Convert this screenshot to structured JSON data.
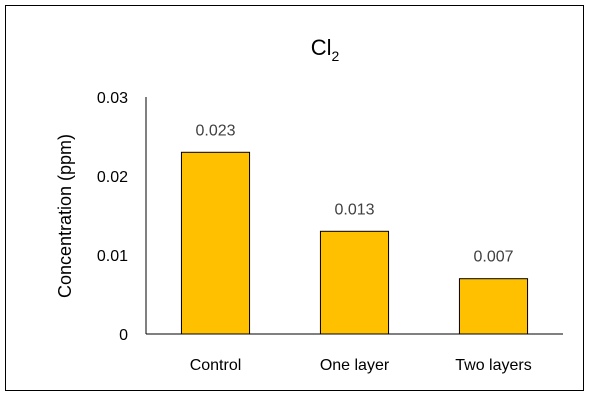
{
  "chart_data": {
    "type": "bar",
    "title": {
      "main": "Cl",
      "subscript": "2"
    },
    "xlabel": "",
    "ylabel": "Concentration (ppm)",
    "categories": [
      "Control",
      "One layer",
      "Two layers"
    ],
    "values": [
      0.023,
      0.013,
      0.007
    ],
    "data_labels": [
      "0.023",
      "0.013",
      "0.007"
    ],
    "yticks": [
      "0",
      "0.01",
      "0.02",
      "0.03"
    ],
    "ylim": [
      0,
      0.03
    ],
    "grid": false,
    "legend": "none",
    "bar_color": "#FFC000",
    "bar_edge_color": "#000000"
  }
}
